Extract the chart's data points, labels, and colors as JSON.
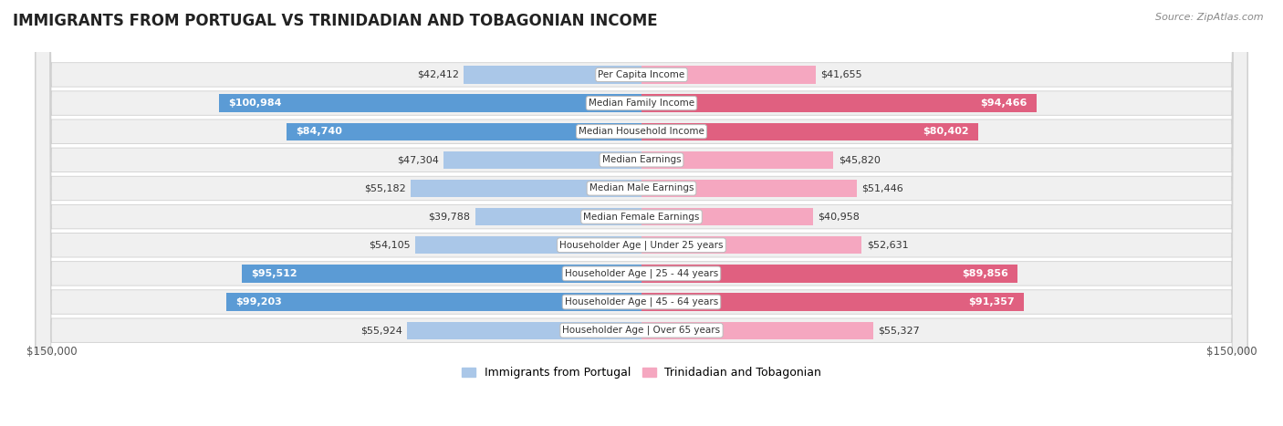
{
  "title": "IMMIGRANTS FROM PORTUGAL VS TRINIDADIAN AND TOBAGONIAN INCOME",
  "source": "Source: ZipAtlas.com",
  "categories": [
    "Per Capita Income",
    "Median Family Income",
    "Median Household Income",
    "Median Earnings",
    "Median Male Earnings",
    "Median Female Earnings",
    "Householder Age | Under 25 years",
    "Householder Age | 25 - 44 years",
    "Householder Age | 45 - 64 years",
    "Householder Age | Over 65 years"
  ],
  "portugal_values": [
    42412,
    100984,
    84740,
    47304,
    55182,
    39788,
    54105,
    95512,
    99203,
    55924
  ],
  "trinidad_values": [
    41655,
    94466,
    80402,
    45820,
    51446,
    40958,
    52631,
    89856,
    91357,
    55327
  ],
  "portugal_labels": [
    "$42,412",
    "$100,984",
    "$84,740",
    "$47,304",
    "$55,182",
    "$39,788",
    "$54,105",
    "$95,512",
    "$99,203",
    "$55,924"
  ],
  "trinidad_labels": [
    "$41,655",
    "$94,466",
    "$80,402",
    "$45,820",
    "$51,446",
    "$40,958",
    "$52,631",
    "$89,856",
    "$91,357",
    "$55,327"
  ],
  "max_value": 150000,
  "portugal_label": "Immigrants from Portugal",
  "trinidad_label": "Trinidadian and Tobagonian",
  "portugal_bar_color_light": "#aac7e8",
  "portugal_bar_color_dark": "#5b9bd5",
  "trinidad_bar_color_light": "#f5a7c0",
  "trinidad_bar_color_dark": "#e06080",
  "inside_label_threshold": 75000,
  "background_color": "#ffffff",
  "row_bg": "#f0f0f0",
  "row_border": "#d0d0d0",
  "title_fontsize": 12,
  "source_fontsize": 8,
  "label_fontsize": 8,
  "cat_fontsize": 7.5
}
